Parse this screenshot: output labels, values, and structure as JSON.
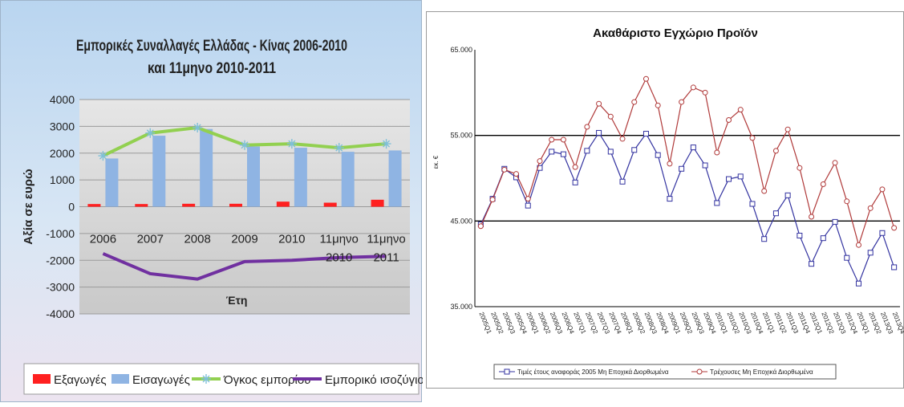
{
  "chart_data": [
    {
      "type": "bar",
      "title_line1": "Εμπορικές Συναλλαγές Ελλάδας - Κίνας 2006-2010",
      "title_line2": "και 11μηνο 2010-2011",
      "xlabel": "Έτη",
      "ylabel": "Αξία σε ευρώ",
      "ylim": [
        -4000,
        4000
      ],
      "yticks": [
        4000,
        3000,
        2000,
        1000,
        0,
        -1000,
        -2000,
        -3000,
        -4000
      ],
      "categories": [
        [
          "2006"
        ],
        [
          "2007"
        ],
        [
          "2008"
        ],
        [
          "2009"
        ],
        [
          "2010"
        ],
        [
          "11μηνο",
          "2010"
        ],
        [
          "11μηνο",
          "2011"
        ]
      ],
      "series": [
        {
          "name": "Εξαγωγές",
          "kind": "bar",
          "color": "#ff2020",
          "values": [
            100,
            100,
            110,
            110,
            190,
            150,
            260
          ]
        },
        {
          "name": "Εισαγωγές",
          "kind": "bar",
          "color": "#8fb4e3",
          "values": [
            1800,
            2650,
            2900,
            2250,
            2200,
            2050,
            2100
          ]
        },
        {
          "name": "Όγκος εμπορίου",
          "kind": "line",
          "color": "#92d050",
          "values": [
            1900,
            2750,
            2950,
            2300,
            2350,
            2200,
            2350
          ]
        },
        {
          "name": "Εμπορικό ισοζύγιο",
          "kind": "line",
          "color": "#7030a0",
          "values": [
            -1750,
            -2500,
            -2700,
            -2050,
            -2000,
            -1900,
            -1850
          ]
        }
      ],
      "grid": true,
      "legend_position": "bottom"
    },
    {
      "type": "line",
      "title": "Ακαθάριστο Εγχώριο Προϊόν",
      "ylabel": "εκ. €",
      "ylim": [
        35,
        65
      ],
      "yticks": [
        "65.000",
        "55.000",
        "45.000",
        "35.000"
      ],
      "ytick_values": [
        65,
        55,
        45,
        35
      ],
      "x": [
        "2005Q1",
        "2005Q2",
        "2005Q3",
        "2005Q4",
        "2006Q1",
        "2006Q2",
        "2006Q3",
        "2006Q4",
        "2007Q1",
        "2007Q2",
        "2007Q3",
        "2007Q4",
        "2008Q1",
        "2008Q2",
        "2008Q3",
        "2008Q4",
        "2009Q1",
        "2009Q2",
        "2009Q3",
        "2009Q4",
        "2010Q1",
        "2010Q2",
        "2010Q3",
        "2010Q4",
        "2011Q1",
        "2011Q2",
        "2011Q3",
        "2011Q4",
        "2012Q1",
        "2012Q2",
        "2012Q3",
        "2012Q4",
        "2013Q1",
        "2013Q2",
        "2013Q3",
        "2013Q4"
      ],
      "series": [
        {
          "name": "Τιμές έτους αναφοράς 2005 Μη Εποχικά Διορθωμένα",
          "color": "#3333a0",
          "marker": "square",
          "values": [
            44.6,
            47.6,
            51.1,
            50.1,
            46.8,
            51.2,
            53.1,
            52.8,
            49.5,
            53.2,
            55.3,
            53.1,
            49.6,
            53.3,
            55.2,
            52.7,
            47.6,
            51.1,
            53.6,
            51.5,
            47.1,
            49.9,
            50.2,
            47.0,
            42.9,
            45.9,
            48.0,
            43.3,
            40.0,
            43.0,
            44.9,
            40.7,
            37.7,
            41.3,
            43.6,
            39.6
          ]
        },
        {
          "name": "Τρέχουσες Μη Εποχικά Διορθωμένα",
          "color": "#b03a3a",
          "marker": "circle",
          "values": [
            44.4,
            47.5,
            51.0,
            50.5,
            47.6,
            52.0,
            54.5,
            54.5,
            51.3,
            56.0,
            58.7,
            57.2,
            54.6,
            58.9,
            61.6,
            58.5,
            51.7,
            58.9,
            60.6,
            60.0,
            53.0,
            56.8,
            58.0,
            54.7,
            48.5,
            53.2,
            55.7,
            51.2,
            45.5,
            49.3,
            51.8,
            47.3,
            42.2,
            46.5,
            48.7,
            44.2
          ]
        }
      ],
      "grid": "horizontal",
      "legend_position": "bottom"
    }
  ]
}
